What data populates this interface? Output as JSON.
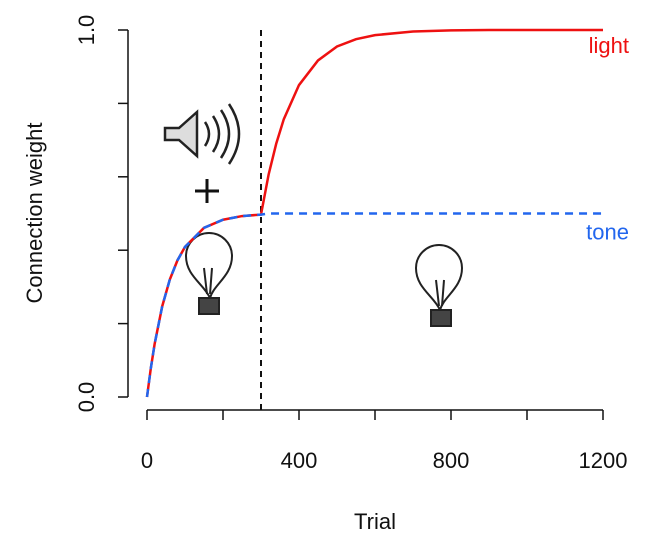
{
  "chart_data": {
    "type": "line",
    "x": [
      0,
      10,
      20,
      40,
      60,
      80,
      100,
      150,
      200,
      250,
      300,
      320,
      340,
      360,
      400,
      450,
      500,
      550,
      600,
      700,
      800,
      900,
      1000,
      1100,
      1200
    ],
    "series": [
      {
        "name": "light",
        "color": "#ee1111",
        "dash": false,
        "values": [
          0,
          0.078,
          0.144,
          0.247,
          0.32,
          0.372,
          0.409,
          0.461,
          0.483,
          0.493,
          0.497,
          0.606,
          0.69,
          0.757,
          0.85,
          0.917,
          0.955,
          0.975,
          0.986,
          0.996,
          0.999,
          1.0,
          1.0,
          1.0,
          1.0
        ]
      },
      {
        "name": "tone",
        "color": "#2266ee",
        "dash": true,
        "values": [
          0,
          0.078,
          0.144,
          0.247,
          0.32,
          0.372,
          0.409,
          0.461,
          0.483,
          0.493,
          0.497,
          0.5,
          0.5,
          0.5,
          0.5,
          0.5,
          0.5,
          0.5,
          0.5,
          0.5,
          0.5,
          0.5,
          0.5,
          0.5,
          0.5
        ]
      }
    ],
    "xlabel": "Trial",
    "ylabel": "Connection weight",
    "xlim": [
      0,
      1200
    ],
    "ylim": [
      0,
      1
    ],
    "xticks": [
      0,
      {
        "value": 200,
        "label": null
      },
      400,
      {
        "value": 600,
        "label": null
      },
      800,
      {
        "value": 1000,
        "label": null
      },
      1200
    ],
    "yticks": [
      {
        "value": 0,
        "label": "0.0"
      },
      {
        "value": 0.2,
        "label": null
      },
      {
        "value": 0.4,
        "label": null
      },
      {
        "value": 0.6,
        "label": null
      },
      {
        "value": 0.8,
        "label": null
      },
      {
        "value": 1,
        "label": "1.0"
      }
    ],
    "vline": 300
  }
}
